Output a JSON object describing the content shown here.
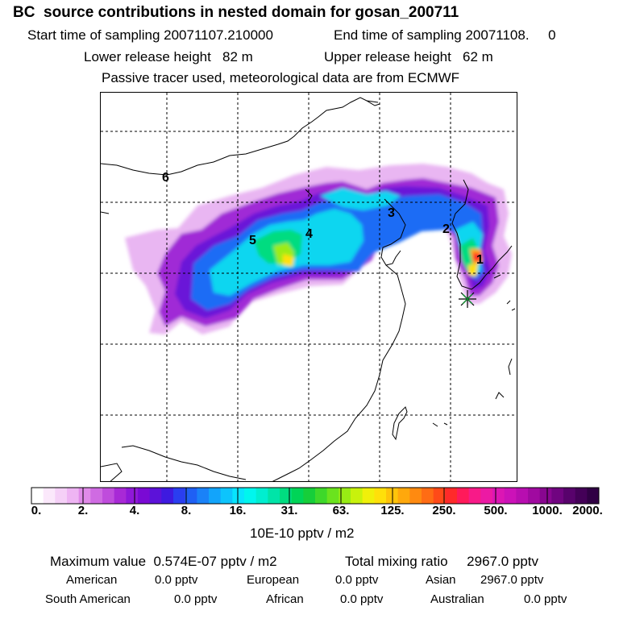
{
  "header": {
    "title": "BC  source contributions in nested domain for gosan_200711",
    "start_label": "Start time of sampling 20071107.210000",
    "end_label": "End time of sampling 20071108.     0",
    "lower_release": "Lower release height   82 m",
    "upper_release": "Upper release height   62 m",
    "tracer_note": "Passive tracer used, meteorological data are from ECMWF"
  },
  "map": {
    "region_labels": [
      {
        "id": "1",
        "text": "1"
      },
      {
        "id": "2",
        "text": "2"
      },
      {
        "id": "3",
        "text": "3"
      },
      {
        "id": "4",
        "text": "4"
      },
      {
        "id": "5",
        "text": "5"
      },
      {
        "id": "6",
        "text": "6"
      }
    ],
    "receptor_marker": "asterisk-icon"
  },
  "colorbar": {
    "tick_labels": [
      "0.",
      "2.",
      "4.",
      "8.",
      "16.",
      "31.",
      "63.",
      "125.",
      "250.",
      "500.",
      "1000.",
      "2000."
    ],
    "unit": "10E-10 pptv / m2",
    "colors": [
      "#ffffff",
      "#fbe8fb",
      "#f5d0f7",
      "#eeb4f3",
      "#e08ae9",
      "#cf6be2",
      "#bf4cdc",
      "#a829d6",
      "#8f18d8",
      "#7a0ad4",
      "#5c12d9",
      "#3e1ae0",
      "#2a3ef0",
      "#1f60f4",
      "#1a82f8",
      "#12a4fb",
      "#0dc4fc",
      "#08e4fd",
      "#00f6ee",
      "#00eed0",
      "#00e4a8",
      "#00dc80",
      "#00d457",
      "#16ce3a",
      "#3ed82a",
      "#6ae31e",
      "#98ec14",
      "#c8f20c",
      "#f0f00a",
      "#ffe00a",
      "#ffc40a",
      "#ffa80c",
      "#ff8a10",
      "#ff6c14",
      "#ff4a18",
      "#ff2a2a",
      "#ff1a5a",
      "#f81a88",
      "#ec1aa4",
      "#dc16b4",
      "#cc12b8",
      "#b80eb0",
      "#a00aa0",
      "#880690",
      "#700480",
      "#58026c",
      "#440058",
      "#300044"
    ]
  },
  "stats": {
    "max_value": "Maximum value  0.574E-07 pptv / m2",
    "total_mixing": "Total mixing ratio     2967.0 pptv",
    "rows": [
      [
        {
          "label": "American",
          "value": "0.0 pptv"
        },
        {
          "label": "European",
          "value": "0.0 pptv"
        },
        {
          "label": "Asian",
          "value": "2967.0 pptv"
        }
      ],
      [
        {
          "label": "South American",
          "value": "0.0 pptv"
        },
        {
          "label": "African",
          "value": "0.0 pptv"
        },
        {
          "label": "Australian",
          "value": "0.0 pptv"
        }
      ]
    ]
  }
}
